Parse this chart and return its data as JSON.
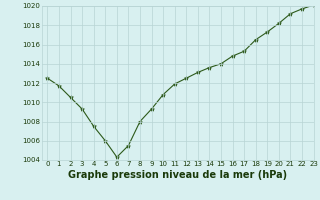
{
  "x": [
    0,
    1,
    2,
    3,
    4,
    5,
    6,
    7,
    8,
    9,
    10,
    11,
    12,
    13,
    14,
    15,
    16,
    17,
    18,
    19,
    20,
    21,
    22,
    23
  ],
  "y": [
    1012.5,
    1011.7,
    1010.5,
    1009.3,
    1007.5,
    1006.0,
    1004.3,
    1005.5,
    1008.0,
    1009.3,
    1010.8,
    1011.9,
    1012.5,
    1013.1,
    1013.6,
    1014.0,
    1014.8,
    1015.3,
    1016.5,
    1017.3,
    1018.2,
    1019.2,
    1019.7,
    1020.1
  ],
  "line_color": "#2d5a1b",
  "marker": "*",
  "marker_size": 3,
  "bg_color": "#d8f0f0",
  "grid_color": "#b8d4d4",
  "title": "Graphe pression niveau de la mer (hPa)",
  "ylim": [
    1004,
    1020
  ],
  "xlim": [
    -0.5,
    23
  ],
  "yticks": [
    1004,
    1006,
    1008,
    1010,
    1012,
    1014,
    1016,
    1018,
    1020
  ],
  "xticks": [
    0,
    1,
    2,
    3,
    4,
    5,
    6,
    7,
    8,
    9,
    10,
    11,
    12,
    13,
    14,
    15,
    16,
    17,
    18,
    19,
    20,
    21,
    22,
    23
  ],
  "title_fontsize": 7,
  "tick_fontsize": 5,
  "title_color": "#1a3a0a",
  "tick_color": "#1a3a0a",
  "line_width": 0.8
}
